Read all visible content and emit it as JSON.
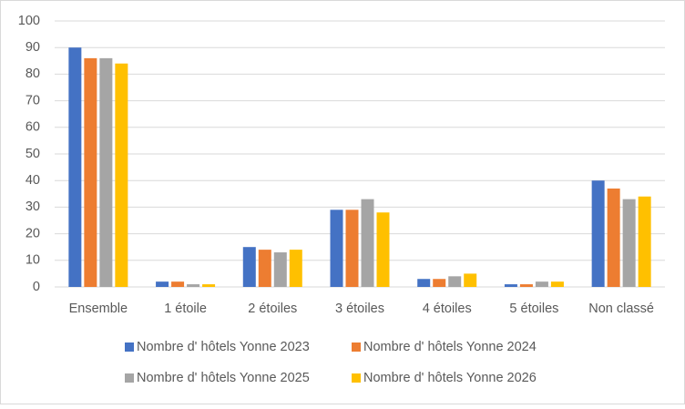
{
  "chart_data": {
    "type": "bar",
    "categories": [
      "Ensemble",
      "1 étoile",
      "2 étoiles",
      "3 étoiles",
      "4 étoiles",
      "5 étoiles",
      "Non classé"
    ],
    "series": [
      {
        "name": "Nombre d' hôtels Yonne 2023",
        "color": "#4472c4",
        "values": [
          90,
          2,
          15,
          29,
          3,
          1,
          40
        ]
      },
      {
        "name": "Nombre d' hôtels Yonne 2024",
        "color": "#ed7d31",
        "values": [
          86,
          2,
          14,
          29,
          3,
          1,
          37
        ]
      },
      {
        "name": "Nombre d' hôtels Yonne 2025",
        "color": "#a5a5a5",
        "values": [
          86,
          1,
          13,
          33,
          4,
          2,
          33
        ]
      },
      {
        "name": "Nombre d' hôtels Yonne 2026",
        "color": "#ffc000",
        "values": [
          84,
          1,
          14,
          28,
          5,
          2,
          34
        ]
      }
    ],
    "ylim": [
      0,
      100
    ],
    "yticks": [
      0,
      10,
      20,
      30,
      40,
      50,
      60,
      70,
      80,
      90,
      100
    ],
    "grid": true,
    "legend": "bottom"
  }
}
